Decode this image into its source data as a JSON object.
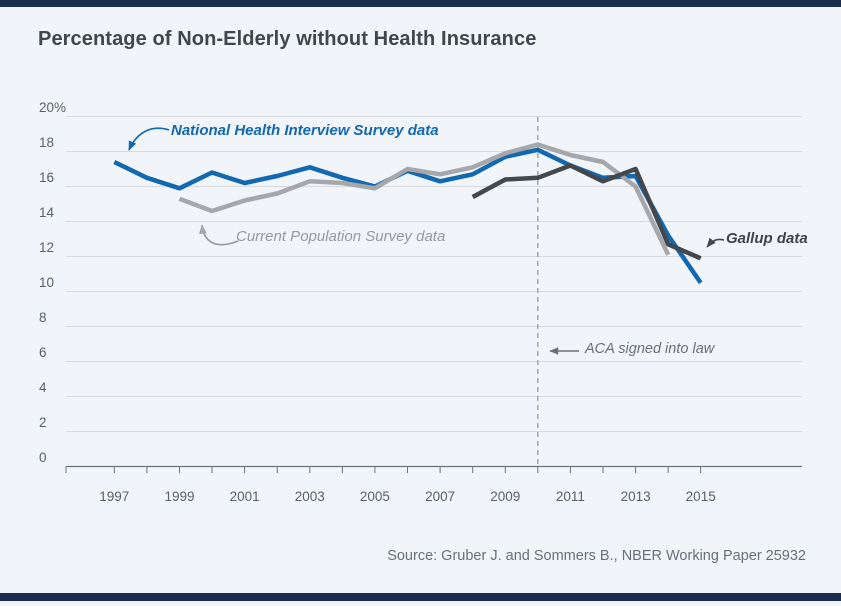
{
  "page": {
    "title": "Percentage of Non-Elderly without Health Insurance",
    "source_note": "Source: Gruber J. and Sommers B., NBER Working Paper 25932"
  },
  "colors": {
    "accent_bar": "#1d2b4c",
    "background": "#f1f4f8",
    "gridline": "#d7dbdf",
    "axis": "#6b727b",
    "dashed_line": "#9aa1a9",
    "axis_label": "#5a616b",
    "nhis_blue": "#1268b1",
    "cps_gray": "#a5a7aa",
    "gallup_dark": "#43474e"
  },
  "chart_data": {
    "type": "line",
    "title": "Percentage of Non-Elderly without Health Insurance",
    "x_range": [
      1997,
      2015
    ],
    "x_tick_labels": [
      "1997",
      "1999",
      "2001",
      "2003",
      "2005",
      "2007",
      "2009",
      "2011",
      "2013",
      "2015"
    ],
    "y_axis": {
      "min": 0,
      "max": 20,
      "step": 2,
      "top_tick_label": "20%",
      "unit": "percent"
    },
    "grid": true,
    "legend_position": "inline-annotations",
    "series": [
      {
        "name": "National Health Interview Survey data",
        "color": "#1268b1",
        "years": [
          1997,
          1998,
          1999,
          2000,
          2001,
          2002,
          2003,
          2004,
          2005,
          2006,
          2007,
          2008,
          2009,
          2010,
          2011,
          2012,
          2013,
          2014,
          2015
        ],
        "values": [
          17.4,
          16.5,
          15.9,
          16.8,
          16.2,
          16.6,
          17.1,
          16.5,
          16.0,
          16.9,
          16.3,
          16.7,
          17.7,
          18.1,
          17.2,
          16.5,
          16.6,
          13.2,
          10.5
        ]
      },
      {
        "name": "Current Population Survey data",
        "color": "#a5a7aa",
        "years": [
          1999,
          2000,
          2001,
          2002,
          2003,
          2004,
          2005,
          2006,
          2007,
          2008,
          2009,
          2010,
          2011,
          2012,
          2013,
          2014
        ],
        "values": [
          15.3,
          14.6,
          15.2,
          15.6,
          16.3,
          16.2,
          15.9,
          17.0,
          16.7,
          17.1,
          17.9,
          18.4,
          17.8,
          17.4,
          16.0,
          12.1
        ]
      },
      {
        "name": "Gallup data",
        "color": "#43474e",
        "years": [
          2008,
          2009,
          2010,
          2011,
          2012,
          2013,
          2014,
          2015
        ],
        "values": [
          15.4,
          16.4,
          16.5,
          17.2,
          16.3,
          17.0,
          12.7,
          11.9
        ]
      }
    ],
    "aca_annotation": {
      "label": "ACA signed into law",
      "year": 2010
    }
  }
}
